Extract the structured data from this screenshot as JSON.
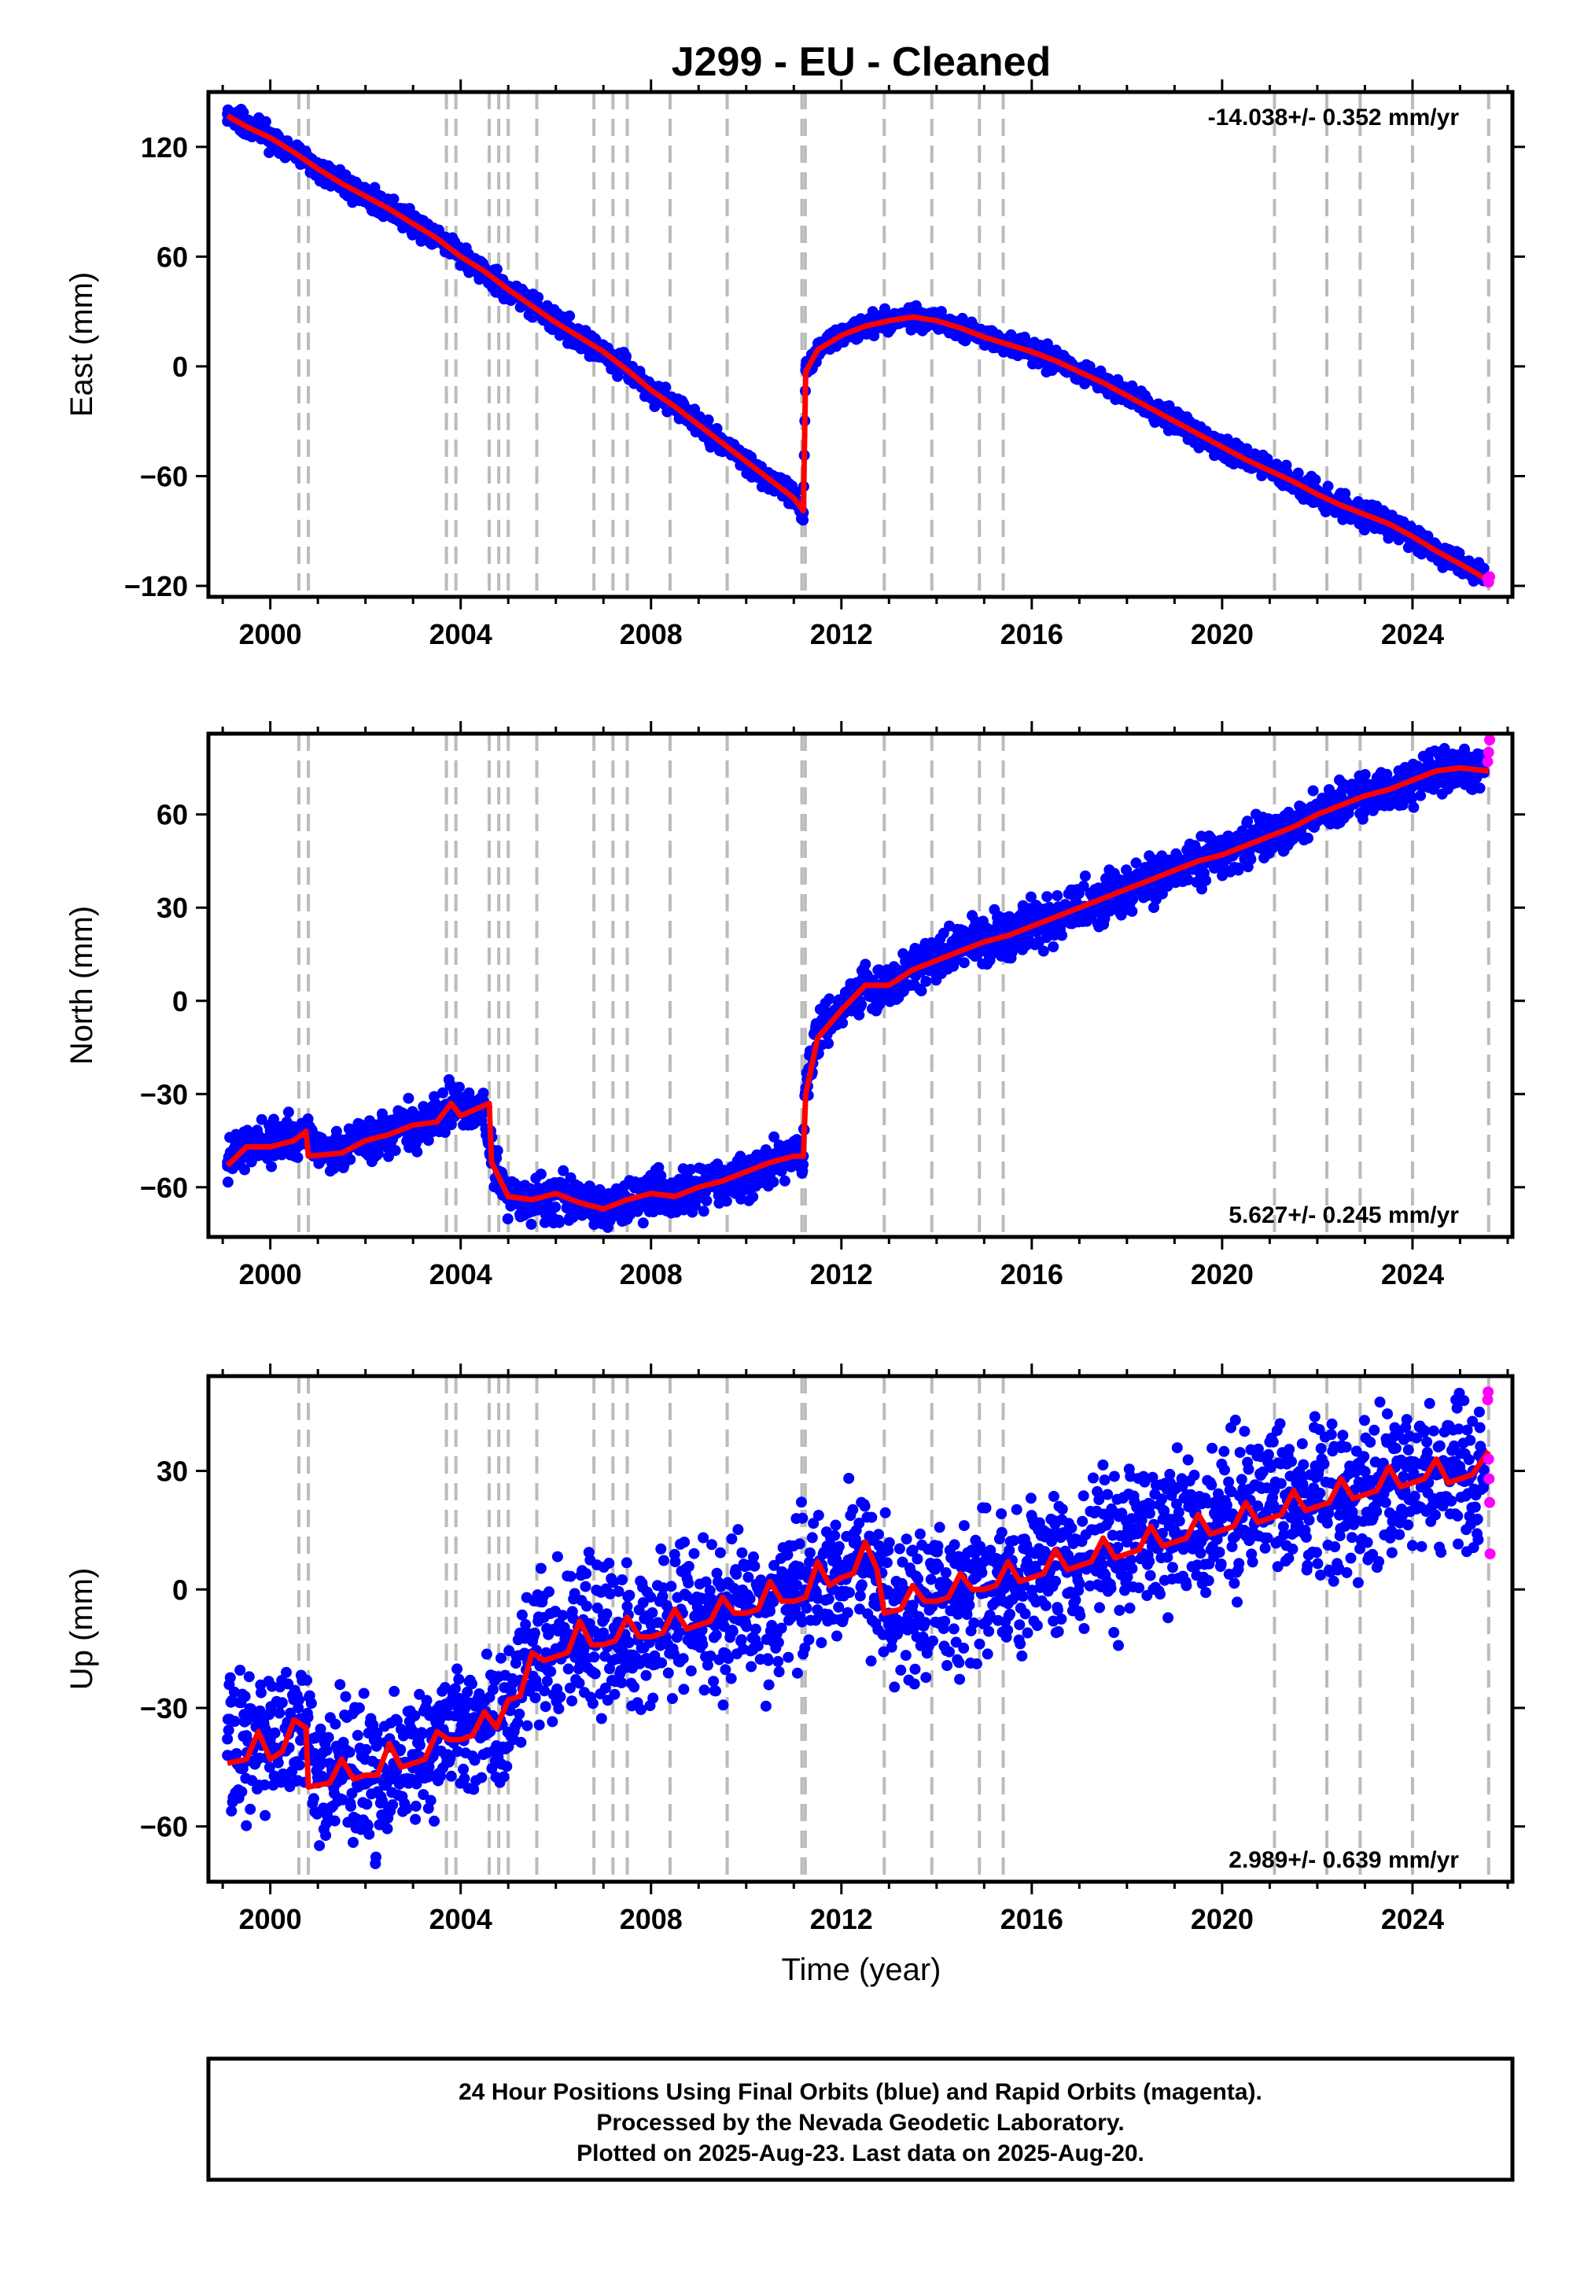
{
  "title": "J299  - EU - Cleaned",
  "xlabel": "Time (year)",
  "footer": {
    "line1": "24 Hour Positions Using Final Orbits (blue) and Rapid Orbits (magenta).",
    "line2": "Processed by the Nevada Geodetic Laboratory.",
    "line3": "Plotted on 2025-Aug-23. Last data on 2025-Aug-20."
  },
  "colors": {
    "final_orbits": "#0000ff",
    "rapid_orbits": "#ff00ff",
    "model_fit": "#ff0000",
    "event_lines": "#bbbbbb"
  },
  "chart_data": [
    {
      "type": "scatter",
      "component": "east",
      "ylabel": "East (mm)",
      "rate": "-14.038+/- 0.352 mm/yr",
      "rate_position": "top-right",
      "xlim": [
        1998.7,
        2026.1
      ],
      "ylim": [
        -126,
        150
      ],
      "xticks": [
        2000,
        2004,
        2008,
        2012,
        2016,
        2020,
        2024
      ],
      "yticks": [
        -120,
        -60,
        0,
        60,
        120
      ],
      "yticklabels": [
        "−120",
        "−60",
        "0",
        "60",
        "120"
      ],
      "event_lines": [
        2000.6,
        2000.8,
        2003.7,
        2003.9,
        2004.6,
        2004.8,
        2005.0,
        2005.6,
        2006.8,
        2007.2,
        2007.5,
        2008.4,
        2009.6,
        2011.17,
        2011.24,
        2012.9,
        2013.9,
        2014.9,
        2015.4,
        2021.1,
        2022.2,
        2022.9,
        2024.0,
        2025.6
      ],
      "series": [
        {
          "name": "Final Orbits",
          "style": "points",
          "color": "#0000ff",
          "x": [
            1999.1,
            1999.5,
            2000.0,
            2000.5,
            2001.0,
            2001.5,
            2002.0,
            2002.5,
            2003.0,
            2003.5,
            2004.0,
            2004.5,
            2005.0,
            2005.5,
            2006.0,
            2006.5,
            2007.0,
            2007.5,
            2008.0,
            2008.5,
            2009.0,
            2009.5,
            2010.0,
            2010.5,
            2011.0,
            2011.2,
            2011.25,
            2011.5,
            2012.0,
            2012.5,
            2013.0,
            2013.5,
            2014.0,
            2014.5,
            2015.0,
            2015.5,
            2016.0,
            2016.5,
            2017.0,
            2017.5,
            2018.0,
            2018.5,
            2019.0,
            2019.5,
            2020.0,
            2020.5,
            2021.0,
            2021.5,
            2022.0,
            2022.5,
            2023.0,
            2023.5,
            2024.0,
            2024.5,
            2025.0,
            2025.5
          ],
          "y": [
            138,
            132,
            125,
            117,
            108,
            100,
            93,
            86,
            78,
            70,
            60,
            52,
            42,
            33,
            24,
            16,
            8,
            -2,
            -13,
            -22,
            -32,
            -42,
            -52,
            -62,
            -72,
            -80,
            -2,
            10,
            17,
            22,
            25,
            27,
            25,
            21,
            16,
            12,
            8,
            3,
            -3,
            -9,
            -16,
            -23,
            -30,
            -37,
            -44,
            -51,
            -57,
            -63,
            -70,
            -76,
            -81,
            -86,
            -93,
            -101,
            -108,
            -116
          ]
        },
        {
          "name": "Rapid Orbits",
          "style": "points",
          "color": "#ff00ff",
          "x": [
            2025.58,
            2025.6,
            2025.62
          ],
          "y": [
            -116,
            -118,
            -115
          ]
        },
        {
          "name": "Model",
          "style": "line",
          "color": "#ff0000",
          "x": [
            1999.1,
            1999.5,
            2000.0,
            2000.5,
            2001.0,
            2001.5,
            2002.0,
            2002.5,
            2003.0,
            2003.5,
            2004.0,
            2004.5,
            2005.0,
            2005.5,
            2006.0,
            2006.5,
            2007.0,
            2007.5,
            2008.0,
            2008.5,
            2009.0,
            2009.5,
            2010.0,
            2010.5,
            2011.0,
            2011.2,
            2011.25,
            2011.5,
            2012.0,
            2012.5,
            2013.0,
            2013.5,
            2014.0,
            2014.5,
            2015.0,
            2015.5,
            2016.0,
            2016.5,
            2017.0,
            2017.5,
            2018.0,
            2018.5,
            2019.0,
            2019.5,
            2020.0,
            2020.5,
            2021.0,
            2021.5,
            2022.0,
            2022.5,
            2023.0,
            2023.5,
            2024.0,
            2024.5,
            2025.0,
            2025.6
          ],
          "y": [
            137,
            131,
            125,
            117,
            108,
            100,
            93,
            86,
            78,
            70,
            60,
            52,
            42,
            33,
            24,
            16,
            8,
            -2,
            -13,
            -22,
            -32,
            -42,
            -52,
            -62,
            -72,
            -79,
            -3,
            9,
            17,
            22,
            25,
            27,
            25,
            21,
            16,
            12,
            8,
            3,
            -3,
            -9,
            -16,
            -23,
            -30,
            -37,
            -44,
            -51,
            -57,
            -63,
            -70,
            -76,
            -81,
            -86,
            -93,
            -101,
            -108,
            -117
          ]
        }
      ]
    },
    {
      "type": "scatter",
      "component": "north",
      "ylabel": "North (mm)",
      "rate": "5.627+/- 0.245 mm/yr",
      "rate_position": "bottom-right",
      "xlim": [
        1998.7,
        2026.1
      ],
      "ylim": [
        -76,
        86
      ],
      "xticks": [
        2000,
        2004,
        2008,
        2012,
        2016,
        2020,
        2024
      ],
      "yticks": [
        -60,
        -30,
        0,
        30,
        60
      ],
      "yticklabels": [
        "−60",
        "−30",
        "0",
        "30",
        "60"
      ],
      "event_lines": [
        2000.6,
        2000.8,
        2003.7,
        2003.9,
        2004.6,
        2004.8,
        2005.0,
        2005.6,
        2006.8,
        2007.2,
        2007.5,
        2008.4,
        2009.6,
        2011.17,
        2011.24,
        2012.9,
        2013.9,
        2014.9,
        2015.4,
        2021.1,
        2022.2,
        2022.9,
        2024.0,
        2025.6
      ],
      "series": [
        {
          "name": "Final Orbits",
          "style": "points",
          "color": "#0000ff",
          "x": [
            1999.1,
            1999.5,
            2000.0,
            2000.5,
            2000.8,
            2001.0,
            2001.5,
            2002.0,
            2002.5,
            2003.0,
            2003.5,
            2003.8,
            2004.0,
            2004.5,
            2004.7,
            2005.0,
            2005.5,
            2006.0,
            2006.5,
            2007.0,
            2007.5,
            2008.0,
            2008.5,
            2009.0,
            2009.5,
            2010.0,
            2010.5,
            2011.0,
            2011.2,
            2011.25,
            2011.5,
            2012.0,
            2012.5,
            2013.0,
            2013.5,
            2014.0,
            2014.5,
            2015.0,
            2015.5,
            2016.0,
            2016.5,
            2017.0,
            2017.5,
            2018.0,
            2018.5,
            2019.0,
            2019.5,
            2020.0,
            2020.5,
            2021.0,
            2021.5,
            2022.0,
            2022.5,
            2023.0,
            2023.5,
            2024.0,
            2024.5,
            2025.0,
            2025.5
          ],
          "y": [
            -52,
            -47,
            -46,
            -44,
            -41,
            -50,
            -48,
            -45,
            -43,
            -40,
            -38,
            -33,
            -36,
            -35,
            -52,
            -63,
            -65,
            -62,
            -65,
            -67,
            -64,
            -62,
            -63,
            -60,
            -58,
            -56,
            -53,
            -50,
            -50,
            -28,
            -10,
            -2,
            6,
            5,
            10,
            13,
            17,
            20,
            22,
            25,
            27,
            30,
            32,
            36,
            38,
            42,
            45,
            47,
            50,
            53,
            56,
            60,
            63,
            66,
            68,
            71,
            75,
            75,
            74
          ]
        },
        {
          "name": "Rapid Orbits",
          "style": "points",
          "color": "#ff00ff",
          "x": [
            2025.58,
            2025.6,
            2025.62
          ],
          "y": [
            77,
            80,
            84
          ]
        },
        {
          "name": "Model",
          "style": "line",
          "color": "#ff0000",
          "x": [
            1999.1,
            1999.5,
            2000.0,
            2000.5,
            2000.75,
            2000.8,
            2001.5,
            2002.0,
            2002.5,
            2003.0,
            2003.5,
            2003.8,
            2004.0,
            2004.6,
            2004.65,
            2005.0,
            2005.5,
            2006.0,
            2006.5,
            2007.0,
            2007.5,
            2008.0,
            2008.5,
            2009.0,
            2009.5,
            2010.0,
            2010.5,
            2011.0,
            2011.2,
            2011.25,
            2011.5,
            2012.0,
            2012.5,
            2013.0,
            2013.5,
            2014.0,
            2014.5,
            2015.0,
            2015.5,
            2016.0,
            2016.5,
            2017.0,
            2017.5,
            2018.0,
            2018.5,
            2019.0,
            2019.5,
            2020.0,
            2020.5,
            2021.0,
            2021.5,
            2022.0,
            2022.5,
            2023.0,
            2023.5,
            2024.0,
            2024.5,
            2025.0,
            2025.6
          ],
          "y": [
            -53,
            -47,
            -47,
            -45,
            -42,
            -50,
            -49,
            -45,
            -43,
            -40,
            -39,
            -33,
            -37,
            -33,
            -52,
            -63,
            -64,
            -62,
            -65,
            -67,
            -64,
            -62,
            -63,
            -60,
            -58,
            -55,
            -52,
            -50,
            -50,
            -30,
            -12,
            -3,
            5,
            5,
            10,
            13,
            16,
            19,
            21,
            24,
            27,
            30,
            33,
            36,
            39,
            42,
            45,
            47,
            50,
            53,
            56,
            60,
            63,
            66,
            68,
            71,
            74,
            75,
            74
          ]
        }
      ]
    },
    {
      "type": "scatter",
      "component": "up",
      "ylabel": "Up (mm)",
      "rate": "2.989+/- 0.639 mm/yr",
      "rate_position": "bottom-right",
      "xlim": [
        1998.7,
        2026.1
      ],
      "ylim": [
        -74,
        54
      ],
      "xticks": [
        2000,
        2004,
        2008,
        2012,
        2016,
        2020,
        2024
      ],
      "yticks": [
        -60,
        -30,
        0,
        30
      ],
      "yticklabels": [
        "−60",
        "−30",
        "0",
        "30"
      ],
      "event_lines": [
        2000.6,
        2000.8,
        2003.7,
        2003.9,
        2004.6,
        2004.8,
        2005.0,
        2005.6,
        2006.8,
        2007.2,
        2007.5,
        2008.4,
        2009.6,
        2011.17,
        2011.24,
        2012.9,
        2013.9,
        2014.9,
        2015.4,
        2021.1,
        2022.2,
        2022.9,
        2024.0,
        2025.6
      ],
      "series": [
        {
          "name": "Final Orbits",
          "style": "points",
          "color": "#0000ff",
          "x": [
            1999.1,
            1999.5,
            2000.0,
            2000.5,
            2001.0,
            2001.5,
            2002.0,
            2002.5,
            2003.0,
            2003.5,
            2004.0,
            2004.5,
            2005.0,
            2005.5,
            2006.0,
            2006.5,
            2007.0,
            2007.5,
            2008.0,
            2008.5,
            2009.0,
            2009.5,
            2010.0,
            2010.5,
            2011.0,
            2011.5,
            2012.0,
            2012.5,
            2013.0,
            2013.5,
            2014.0,
            2014.5,
            2015.0,
            2015.5,
            2016.0,
            2016.5,
            2017.0,
            2017.5,
            2018.0,
            2018.5,
            2019.0,
            2019.5,
            2020.0,
            2020.5,
            2021.0,
            2021.5,
            2022.0,
            2022.5,
            2023.0,
            2023.5,
            2024.0,
            2024.5,
            2025.0,
            2025.5
          ],
          "y": [
            -42,
            -37,
            -40,
            -33,
            -49,
            -44,
            -48,
            -46,
            -43,
            -38,
            -36,
            -34,
            -29,
            -18,
            -15,
            -13,
            -11,
            -13,
            -11,
            -9,
            -8,
            -6,
            -5,
            -4,
            -2,
            3,
            5,
            8,
            -6,
            -4,
            -2,
            -1,
            0,
            2,
            4,
            6,
            8,
            10,
            12,
            13,
            15,
            17,
            18,
            20,
            21,
            22,
            23,
            24,
            25,
            26,
            28,
            29,
            30,
            27
          ]
        },
        {
          "name": "Rapid Orbits",
          "style": "points",
          "color": "#ff00ff",
          "x": [
            2025.58,
            2025.59,
            2025.6,
            2025.61,
            2025.62,
            2025.63
          ],
          "y": [
            48,
            50,
            33,
            28,
            22,
            9
          ]
        },
        {
          "name": "Model",
          "style": "line",
          "color": "#ff0000",
          "x": [
            1999.1,
            1999.5,
            1999.75,
            2000.0,
            2000.25,
            2000.5,
            2000.75,
            2000.8,
            2001.25,
            2001.5,
            2001.75,
            2002.0,
            2002.25,
            2002.5,
            2002.75,
            2003.0,
            2003.25,
            2003.5,
            2003.75,
            2004.0,
            2004.25,
            2004.5,
            2004.75,
            2005.0,
            2005.25,
            2005.5,
            2005.75,
            2006.0,
            2006.25,
            2006.5,
            2006.75,
            2007.0,
            2007.25,
            2007.5,
            2007.75,
            2008.0,
            2008.25,
            2008.5,
            2008.75,
            2009.0,
            2009.25,
            2009.5,
            2009.75,
            2010.0,
            2010.25,
            2010.5,
            2010.75,
            2011.0,
            2011.25,
            2011.5,
            2011.75,
            2012.0,
            2012.25,
            2012.5,
            2012.75,
            2012.9,
            2013.25,
            2013.5,
            2013.75,
            2014.0,
            2014.25,
            2014.5,
            2014.75,
            2015.0,
            2015.25,
            2015.5,
            2015.75,
            2016.0,
            2016.25,
            2016.5,
            2016.75,
            2017.0,
            2017.25,
            2017.5,
            2017.75,
            2018.0,
            2018.25,
            2018.5,
            2018.75,
            2019.0,
            2019.25,
            2019.5,
            2019.75,
            2020.0,
            2020.25,
            2020.5,
            2020.75,
            2021.0,
            2021.25,
            2021.5,
            2021.75,
            2022.0,
            2022.25,
            2022.5,
            2022.75,
            2023.0,
            2023.25,
            2023.5,
            2023.75,
            2024.0,
            2024.25,
            2024.5,
            2024.75,
            2025.0,
            2025.25,
            2025.6
          ],
          "y": [
            -44,
            -43,
            -36,
            -43,
            -41,
            -33,
            -35,
            -50,
            -49,
            -43,
            -48,
            -47,
            -47,
            -39,
            -45,
            -44,
            -43,
            -36,
            -38,
            -38,
            -37,
            -31,
            -35,
            -28,
            -27,
            -16,
            -18,
            -17,
            -16,
            -8,
            -14,
            -14,
            -13,
            -7,
            -12,
            -12,
            -11,
            -5,
            -10,
            -9,
            -8,
            -2,
            -6,
            -6,
            -5,
            2,
            -3,
            -3,
            -2,
            7,
            1,
            3,
            4,
            12,
            5,
            -6,
            -5,
            1,
            -3,
            -3,
            -2,
            4,
            0,
            0,
            1,
            7,
            2,
            3,
            4,
            10,
            5,
            6,
            7,
            13,
            8,
            9,
            10,
            16,
            11,
            12,
            13,
            19,
            14,
            15,
            16,
            22,
            17,
            18,
            19,
            25,
            20,
            21,
            22,
            28,
            23,
            24,
            25,
            31,
            26,
            27,
            28,
            33,
            27,
            28,
            29,
            35
          ]
        }
      ]
    }
  ]
}
